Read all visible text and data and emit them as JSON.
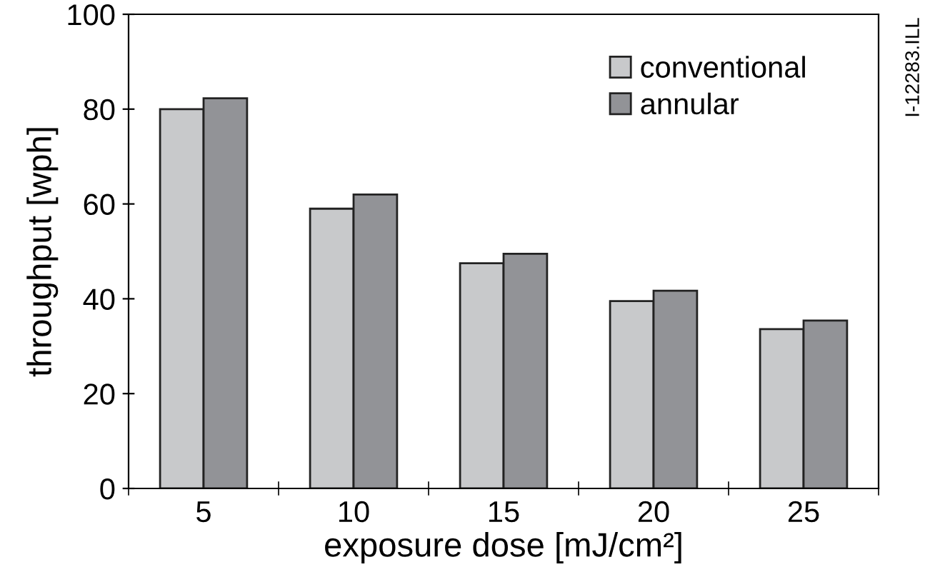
{
  "chart_data": {
    "type": "bar",
    "xlabel": "exposure dose [mJ/cm²]",
    "ylabel": "throughput [wph]",
    "categories": [
      "5",
      "10",
      "15",
      "20",
      "25"
    ],
    "series": [
      {
        "name": "conventional",
        "color": "#c8c9cb",
        "values": [
          80,
          59,
          47.5,
          39.5,
          33.6
        ]
      },
      {
        "name": "annular",
        "color": "#929397",
        "values": [
          82.3,
          62,
          49.5,
          41.7,
          35.4
        ]
      }
    ],
    "ylim": [
      0,
      100
    ],
    "yticks": [
      0,
      20,
      40,
      60,
      80,
      100
    ],
    "grid": false,
    "legend": "top right",
    "annotations": [
      "I-12283.ILL"
    ]
  }
}
